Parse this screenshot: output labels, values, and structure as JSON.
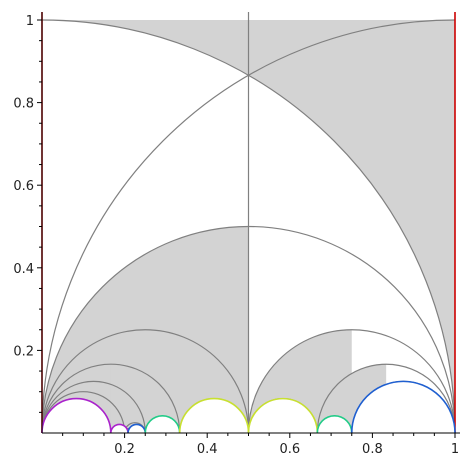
{
  "chart_data": {
    "type": "line",
    "title": "",
    "xlabel": "",
    "ylabel": "",
    "xlim": [
      0,
      1
    ],
    "ylim": [
      0,
      1
    ],
    "grid": false,
    "x_ticks": [
      0.2,
      0.4,
      0.6,
      0.8,
      1
    ],
    "x_tick_labels": [
      "0.2",
      "0.4",
      "0.6",
      "0.8",
      "1"
    ],
    "y_ticks": [
      0.2,
      0.4,
      0.6,
      0.8,
      1
    ],
    "y_tick_labels": [
      "0.2",
      "0.4",
      "0.6",
      "0.8",
      "1"
    ],
    "shaded_regions": [
      {
        "description": "fundamental-domain tiles of a Fuchsian group in the upper half-plane, bounded by gray geodesics"
      }
    ],
    "colors": {
      "fill": "#d3d3d3",
      "edge": "#808080",
      "boundary_lines": "#cc0000",
      "purple": "#aa22cc",
      "blue": "#1f5fd0",
      "green": "#22cc88",
      "yellow_green": "#c8e030"
    },
    "colored_arcs": [
      {
        "center": 0.0833,
        "radius": 0.0833,
        "color": "purple"
      },
      {
        "center": 0.1875,
        "radius": 0.0208,
        "color": "purple"
      },
      {
        "center": 0.2292,
        "radius": 0.0208,
        "color": "blue"
      },
      {
        "center": 0.2917,
        "radius": 0.0417,
        "color": "green"
      },
      {
        "center": 0.4167,
        "radius": 0.0833,
        "color": "yellow_green"
      },
      {
        "center": 0.5833,
        "radius": 0.0833,
        "color": "yellow_green"
      },
      {
        "center": 0.7083,
        "radius": 0.0417,
        "color": "green"
      },
      {
        "center": 0.875,
        "radius": 0.125,
        "color": "blue"
      }
    ],
    "vertical_lines": [
      {
        "x": 0,
        "color": "boundary_lines"
      },
      {
        "x": 1,
        "color": "boundary_lines"
      },
      {
        "x": 0.5,
        "color": "edge"
      }
    ]
  }
}
